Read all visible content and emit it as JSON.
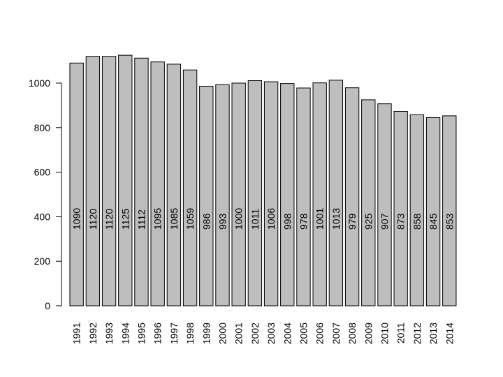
{
  "chart_data": {
    "type": "bar",
    "title": "",
    "xlabel": "",
    "ylabel": "",
    "categories": [
      "1991",
      "1992",
      "1993",
      "1994",
      "1995",
      "1996",
      "1997",
      "1998",
      "1999",
      "2000",
      "2001",
      "2002",
      "2003",
      "2004",
      "2005",
      "2006",
      "2007",
      "2008",
      "2009",
      "2010",
      "2011",
      "2012",
      "2013",
      "2014"
    ],
    "values": [
      1090,
      1120,
      1120,
      1125,
      1112,
      1095,
      1085,
      1059,
      986,
      993,
      1000,
      1011,
      1006,
      998,
      978,
      1001,
      1013,
      979,
      925,
      907,
      873,
      858,
      845,
      853
    ],
    "data_labels": [
      "1090",
      "1120",
      "1120",
      "1125",
      "1112",
      "1095",
      "1085",
      "1059",
      "986",
      "993",
      "1000",
      "1011",
      "1006",
      "998",
      "978",
      "1001",
      "1013",
      "979",
      "925",
      "907",
      "873",
      "858",
      "845",
      "853"
    ],
    "y_ticks": [
      "0",
      "200",
      "400",
      "600",
      "800",
      "1000"
    ],
    "ylim": [
      0,
      1125
    ],
    "grid": false,
    "bar_color": "#bebebe",
    "bar_border": "#000000"
  }
}
